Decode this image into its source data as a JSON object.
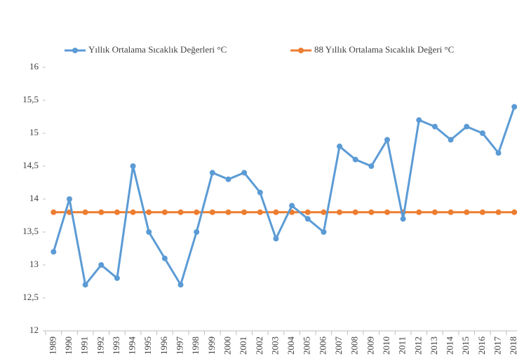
{
  "chart_data": {
    "type": "line",
    "categories": [
      "1989",
      "1990",
      "1991",
      "1992",
      "1993",
      "1994",
      "1995",
      "1996",
      "1997",
      "1998",
      "1999",
      "2000",
      "2001",
      "2002",
      "2003",
      "2004",
      "2005",
      "2006",
      "2007",
      "2008",
      "2009",
      "2010",
      "2011",
      "2012",
      "2013",
      "2014",
      "2015",
      "2016",
      "2017",
      "2018"
    ],
    "series": [
      {
        "name": "Yıllık Ortalama Sıcaklık Değerleri °C",
        "color": "#5b9bd5",
        "values": [
          13.2,
          14.0,
          12.7,
          13.0,
          12.8,
          14.5,
          13.5,
          13.1,
          12.7,
          13.5,
          14.4,
          14.3,
          14.4,
          14.1,
          13.4,
          13.9,
          13.7,
          13.5,
          14.8,
          14.6,
          14.5,
          14.9,
          13.7,
          15.2,
          15.1,
          14.9,
          15.1,
          15.0,
          14.7,
          15.4
        ]
      },
      {
        "name": "88 Yıllık Ortalama Sıcaklık Değeri °C",
        "color": "#ed7d31",
        "values": [
          13.8,
          13.8,
          13.8,
          13.8,
          13.8,
          13.8,
          13.8,
          13.8,
          13.8,
          13.8,
          13.8,
          13.8,
          13.8,
          13.8,
          13.8,
          13.8,
          13.8,
          13.8,
          13.8,
          13.8,
          13.8,
          13.8,
          13.8,
          13.8,
          13.8,
          13.8,
          13.8,
          13.8,
          13.8,
          13.8
        ]
      }
    ],
    "ylim": [
      12,
      16
    ],
    "yticks": [
      12,
      {
        "value": 12.5,
        "label": "12,5"
      },
      13,
      {
        "value": 13.5,
        "label": "13,5"
      },
      14,
      {
        "value": 14.5,
        "label": "14,5"
      },
      15,
      {
        "value": 15.5,
        "label": "15,5"
      },
      16
    ],
    "legend": "top"
  }
}
